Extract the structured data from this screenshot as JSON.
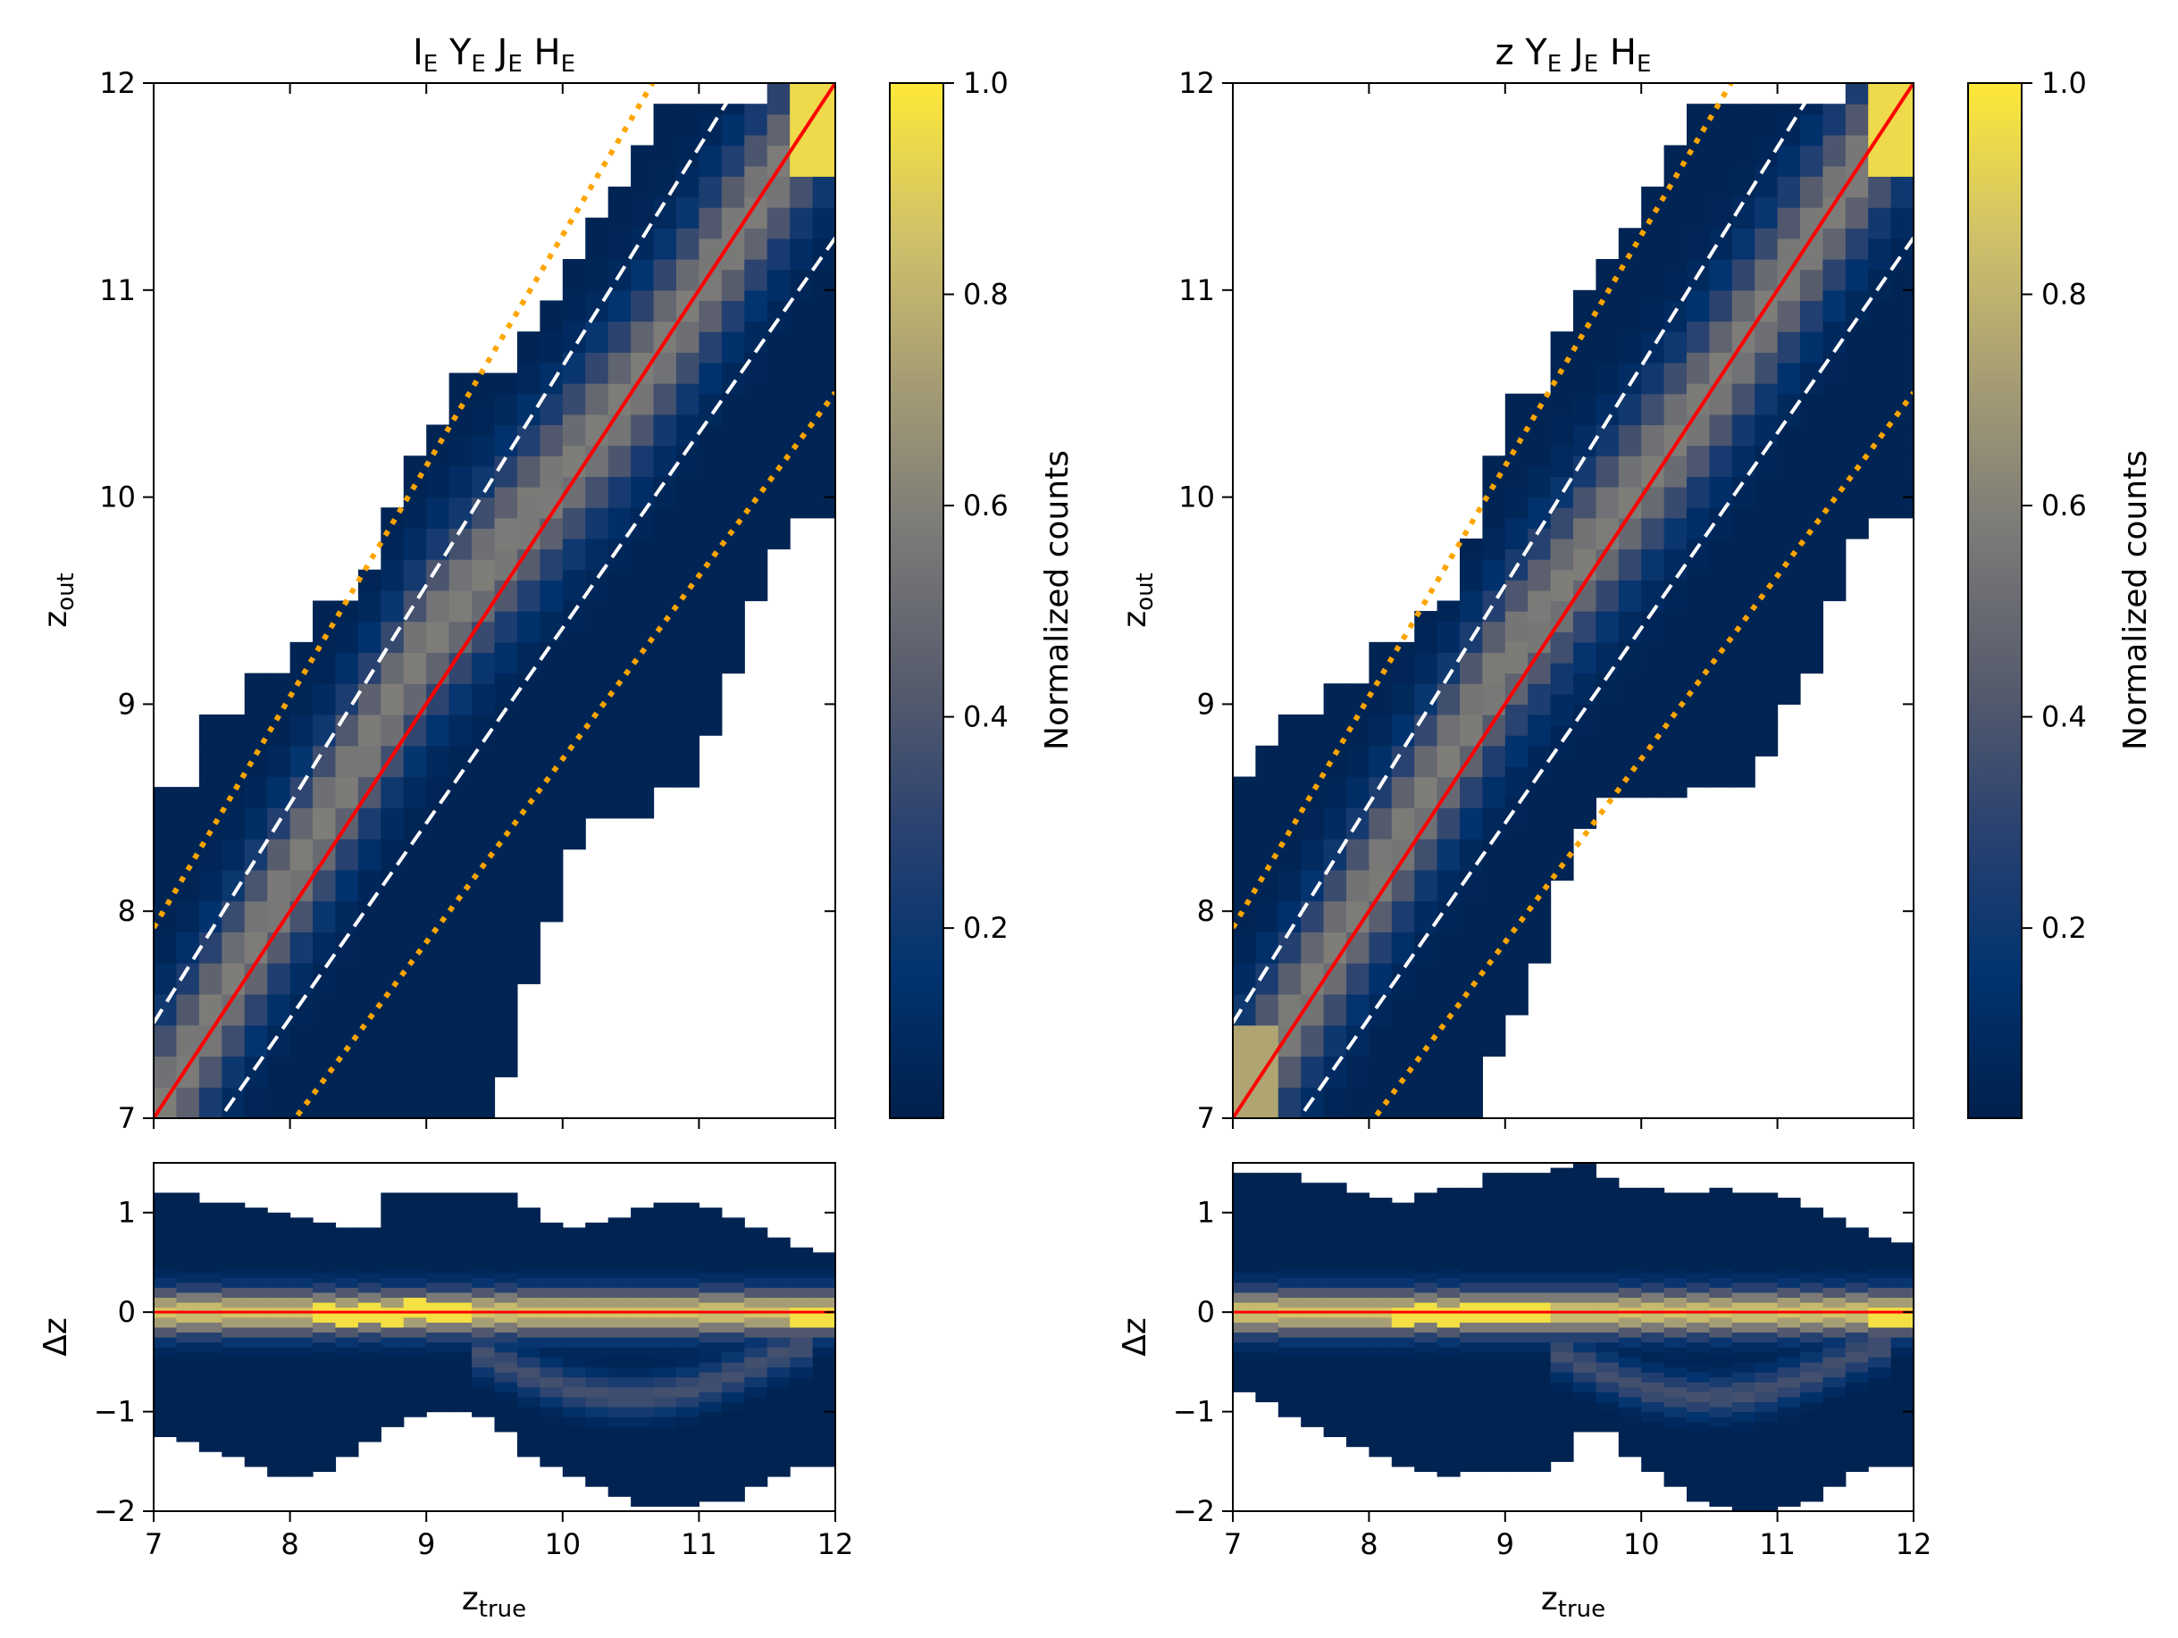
{
  "colormap": [
    "#00204c",
    "#01336f",
    "#2a4270",
    "#575c6d",
    "#7c7b78",
    "#a59c74",
    "#cfc16a",
    "#fee838"
  ],
  "chart_data": [
    {
      "id": "left",
      "type": "heatmap",
      "title_main": [
        "I",
        "Y",
        "J",
        "H"
      ],
      "title_sub": [
        "E",
        "E",
        "E",
        "E"
      ],
      "top": {
        "xlim": [
          7,
          12
        ],
        "ylim": [
          7,
          12
        ],
        "xticks": [
          "7",
          "8",
          "9",
          "10",
          "11",
          "12"
        ],
        "yticks": [
          "7",
          "8",
          "9",
          "10",
          "11",
          "12"
        ],
        "ylabel_main": "z",
        "ylabel_sub": "out",
        "bin_width": 0.2,
        "envelope_comment": "per x-bin [zmin, zmax] occupied range",
        "envelope": [
          [
            7.0,
            8.6
          ],
          [
            7.0,
            8.6
          ],
          [
            7.0,
            8.95
          ],
          [
            7.0,
            8.95
          ],
          [
            7.0,
            9.15
          ],
          [
            7.0,
            9.15
          ],
          [
            7.0,
            9.3
          ],
          [
            7.0,
            9.5
          ],
          [
            7.0,
            9.5
          ],
          [
            7.0,
            9.65
          ],
          [
            7.0,
            9.95
          ],
          [
            7.0,
            10.2
          ],
          [
            7.0,
            10.35
          ],
          [
            7.0,
            10.6
          ],
          [
            7.0,
            10.6
          ],
          [
            7.2,
            10.6
          ],
          [
            7.65,
            10.8
          ],
          [
            7.95,
            10.95
          ],
          [
            8.3,
            11.15
          ],
          [
            8.45,
            11.35
          ],
          [
            8.45,
            11.5
          ],
          [
            8.45,
            11.7
          ],
          [
            8.6,
            11.9
          ],
          [
            8.6,
            11.9
          ],
          [
            8.85,
            11.9
          ],
          [
            9.15,
            11.9
          ],
          [
            9.5,
            11.9
          ],
          [
            9.75,
            12.0
          ],
          [
            9.9,
            12.0
          ],
          [
            9.9,
            12.0
          ]
        ],
        "ridge": [
          {
            "z": 7.0,
            "offset": 0.0
          },
          {
            "z": 9.0,
            "offset": 0.3
          },
          {
            "z": 10.5,
            "offset": 0.0
          },
          {
            "z": 12.0,
            "offset": 0.0
          }
        ],
        "lines": [
          {
            "name": "one-to-one",
            "color": "#ff0000",
            "style": "solid",
            "offset": 0.0,
            "slope": 1.0
          },
          {
            "name": "upper-1sigma",
            "color": "#ffffff",
            "style": "dashed",
            "offset": 0.4,
            "slope": 1.15
          },
          {
            "name": "lower-1sigma",
            "color": "#ffffff",
            "style": "dashed",
            "offset": -0.4,
            "slope": 1.15
          },
          {
            "name": "upper-outlier",
            "color": "#ffa500",
            "style": "dotted",
            "offset": 0.8,
            "slope": 1.15
          },
          {
            "name": "lower-outlier",
            "color": "#ffa500",
            "style": "dotted",
            "offset": -0.8,
            "slope": 1.15
          }
        ]
      },
      "bottom": {
        "xlim": [
          7,
          12
        ],
        "ylim": [
          -2,
          1.5
        ],
        "xticks": [
          "7",
          "8",
          "9",
          "10",
          "11",
          "12"
        ],
        "yticks": [
          "−2",
          "−1",
          "0",
          "1"
        ],
        "ytick_values": [
          -2,
          -1,
          0,
          1
        ],
        "ylabel": "Δz",
        "xlabel_main": "z",
        "xlabel_sub": "true",
        "envelope": [
          [
            -1.25,
            1.2
          ],
          [
            -1.3,
            1.2
          ],
          [
            -1.4,
            1.1
          ],
          [
            -1.45,
            1.1
          ],
          [
            -1.55,
            1.05
          ],
          [
            -1.65,
            1.0
          ],
          [
            -1.65,
            0.95
          ],
          [
            -1.6,
            0.9
          ],
          [
            -1.45,
            0.85
          ],
          [
            -1.3,
            0.85
          ],
          [
            -1.15,
            1.2
          ],
          [
            -1.05,
            1.2
          ],
          [
            -1.0,
            1.2
          ],
          [
            -1.0,
            1.2
          ],
          [
            -1.05,
            1.2
          ],
          [
            -1.2,
            1.2
          ],
          [
            -1.45,
            1.05
          ],
          [
            -1.55,
            0.9
          ],
          [
            -1.65,
            0.85
          ],
          [
            -1.75,
            0.9
          ],
          [
            -1.85,
            0.95
          ],
          [
            -1.95,
            1.05
          ],
          [
            -1.95,
            1.1
          ],
          [
            -1.95,
            1.1
          ],
          [
            -1.9,
            1.05
          ],
          [
            -1.9,
            0.95
          ],
          [
            -1.75,
            0.85
          ],
          [
            -1.65,
            0.75
          ],
          [
            -1.55,
            0.65
          ],
          [
            -1.55,
            0.6
          ]
        ]
      },
      "colorbar": {
        "label": "Normalized counts",
        "ticks": [
          "0.2",
          "0.4",
          "0.6",
          "0.8",
          "1.0"
        ],
        "tick_values": [
          0.2,
          0.4,
          0.6,
          0.8,
          1.0
        ]
      }
    },
    {
      "id": "right",
      "type": "heatmap",
      "title_main": [
        "z Y",
        "J",
        "H"
      ],
      "title_sub": [
        "E",
        "E",
        "E"
      ],
      "top": {
        "xlim": [
          7,
          12
        ],
        "ylim": [
          7,
          12
        ],
        "xticks": [
          "7",
          "8",
          "9",
          "10",
          "11",
          "12"
        ],
        "yticks": [
          "7",
          "8",
          "9",
          "10",
          "11",
          "12"
        ],
        "ylabel_main": "z",
        "ylabel_sub": "out",
        "bin_width": 0.2,
        "envelope": [
          [
            7.0,
            8.65
          ],
          [
            7.0,
            8.8
          ],
          [
            7.0,
            8.95
          ],
          [
            7.0,
            8.95
          ],
          [
            7.0,
            9.1
          ],
          [
            7.0,
            9.1
          ],
          [
            7.0,
            9.3
          ],
          [
            7.0,
            9.3
          ],
          [
            7.0,
            9.45
          ],
          [
            7.0,
            9.5
          ],
          [
            7.0,
            9.8
          ],
          [
            7.3,
            10.2
          ],
          [
            7.5,
            10.5
          ],
          [
            7.75,
            10.5
          ],
          [
            8.15,
            10.8
          ],
          [
            8.4,
            11.0
          ],
          [
            8.55,
            11.15
          ],
          [
            8.55,
            11.3
          ],
          [
            8.55,
            11.5
          ],
          [
            8.55,
            11.7
          ],
          [
            8.6,
            11.9
          ],
          [
            8.6,
            11.9
          ],
          [
            8.6,
            11.9
          ],
          [
            8.75,
            11.9
          ],
          [
            9.0,
            11.9
          ],
          [
            9.15,
            11.9
          ],
          [
            9.5,
            11.9
          ],
          [
            9.8,
            12.0
          ],
          [
            9.9,
            12.0
          ],
          [
            9.9,
            12.0
          ]
        ],
        "ridge": [
          {
            "z": 7.0,
            "offset": 0.0
          },
          {
            "z": 9.0,
            "offset": 0.2
          },
          {
            "z": 10.5,
            "offset": 0.0
          },
          {
            "z": 12.0,
            "offset": 0.0
          }
        ],
        "lines": [
          {
            "name": "one-to-one",
            "color": "#ff0000",
            "style": "solid",
            "offset": 0.0,
            "slope": 1.0
          },
          {
            "name": "upper-1sigma",
            "color": "#ffffff",
            "style": "dashed",
            "offset": 0.4,
            "slope": 1.15
          },
          {
            "name": "lower-1sigma",
            "color": "#ffffff",
            "style": "dashed",
            "offset": -0.4,
            "slope": 1.15
          },
          {
            "name": "upper-outlier",
            "color": "#ffa500",
            "style": "dotted",
            "offset": 0.8,
            "slope": 1.15
          },
          {
            "name": "lower-outlier",
            "color": "#ffa500",
            "style": "dotted",
            "offset": -0.8,
            "slope": 1.15
          }
        ]
      },
      "bottom": {
        "xlim": [
          7,
          12
        ],
        "ylim": [
          -2,
          1.5
        ],
        "xticks": [
          "7",
          "8",
          "9",
          "10",
          "11",
          "12"
        ],
        "yticks": [
          "−2",
          "−1",
          "0",
          "1"
        ],
        "ytick_values": [
          -2,
          -1,
          0,
          1
        ],
        "ylabel": "Δz",
        "xlabel_main": "z",
        "xlabel_sub": "true",
        "envelope": [
          [
            -0.8,
            1.4
          ],
          [
            -0.9,
            1.4
          ],
          [
            -1.05,
            1.4
          ],
          [
            -1.15,
            1.3
          ],
          [
            -1.25,
            1.3
          ],
          [
            -1.35,
            1.2
          ],
          [
            -1.45,
            1.15
          ],
          [
            -1.55,
            1.1
          ],
          [
            -1.6,
            1.2
          ],
          [
            -1.65,
            1.25
          ],
          [
            -1.6,
            1.25
          ],
          [
            -1.6,
            1.4
          ],
          [
            -1.6,
            1.4
          ],
          [
            -1.6,
            1.4
          ],
          [
            -1.5,
            1.45
          ],
          [
            -1.2,
            1.5
          ],
          [
            -1.2,
            1.35
          ],
          [
            -1.45,
            1.25
          ],
          [
            -1.6,
            1.25
          ],
          [
            -1.75,
            1.2
          ],
          [
            -1.9,
            1.2
          ],
          [
            -1.95,
            1.25
          ],
          [
            -2.0,
            1.2
          ],
          [
            -2.0,
            1.2
          ],
          [
            -1.95,
            1.15
          ],
          [
            -1.9,
            1.05
          ],
          [
            -1.75,
            0.95
          ],
          [
            -1.6,
            0.85
          ],
          [
            -1.55,
            0.75
          ],
          [
            -1.55,
            0.7
          ]
        ]
      },
      "colorbar": {
        "label": "Normalized counts",
        "ticks": [
          "0.2",
          "0.4",
          "0.6",
          "0.8",
          "1.0"
        ],
        "tick_values": [
          0.2,
          0.4,
          0.6,
          0.8,
          1.0
        ]
      }
    }
  ]
}
